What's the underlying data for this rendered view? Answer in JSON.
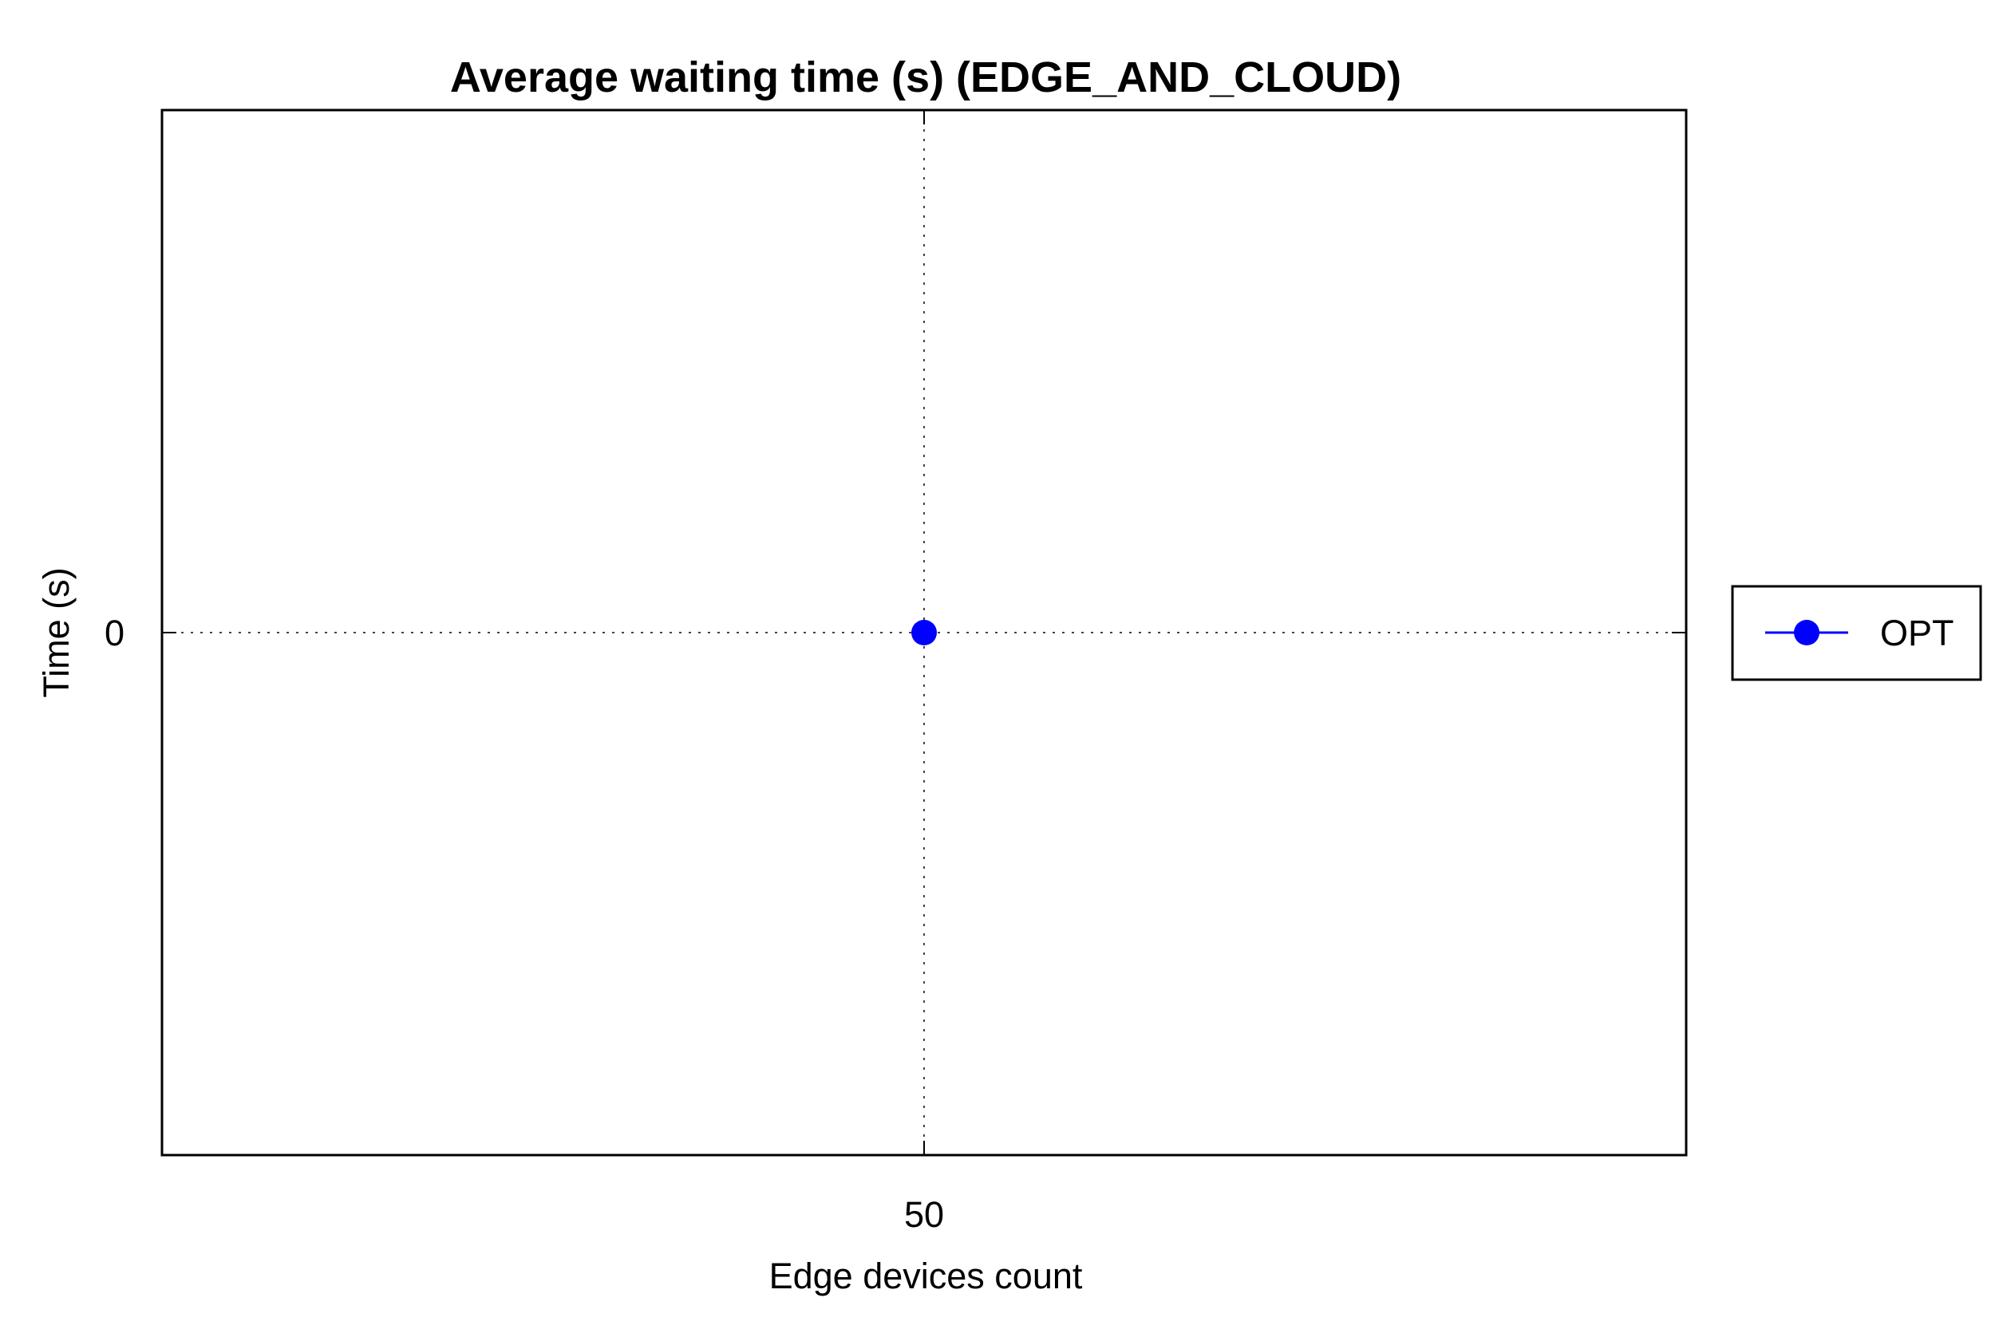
{
  "chart_data": {
    "type": "line",
    "title": "Average waiting time (s) (EDGE_AND_CLOUD)",
    "xlabel": "Edge devices count",
    "ylabel": "Time (s)",
    "x": [
      50
    ],
    "x_ticks": [
      "50"
    ],
    "y_ticks": [
      "0"
    ],
    "xlim": [
      49,
      51
    ],
    "ylim": [
      -1,
      1
    ],
    "grid": true,
    "legend_position": "right",
    "series": [
      {
        "name": "OPT",
        "color": "#0000ff",
        "marker": "circle",
        "values": [
          0
        ]
      }
    ]
  }
}
